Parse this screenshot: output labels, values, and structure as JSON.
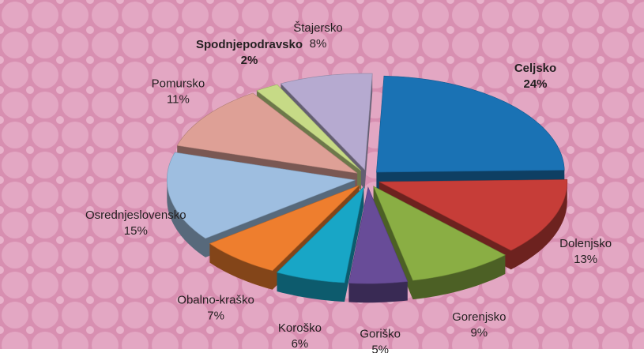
{
  "chart_data": {
    "type": "pie3d",
    "categories": [
      "Celjsko",
      "Dolenjsko",
      "Gorenjsko",
      "Goriško",
      "Koroško",
      "Obalno-kraško",
      "Osrednjeslovensko",
      "Pomursko",
      "Spodnjepodravsko",
      "Štajersko"
    ],
    "values": [
      24,
      13,
      9,
      5,
      6,
      7,
      15,
      11,
      2,
      8
    ],
    "value_labels": [
      "24%",
      "13%",
      "9%",
      "5%",
      "6%",
      "7%",
      "15%",
      "11%",
      "2%",
      "8%"
    ],
    "colors": [
      "#1a72b4",
      "#c63d38",
      "#8aae44",
      "#684c98",
      "#18a6c6",
      "#ee7e2e",
      "#9ebee0",
      "#dea096",
      "#c6da86",
      "#b6aad0"
    ],
    "bold_labels": [
      0,
      8
    ]
  }
}
